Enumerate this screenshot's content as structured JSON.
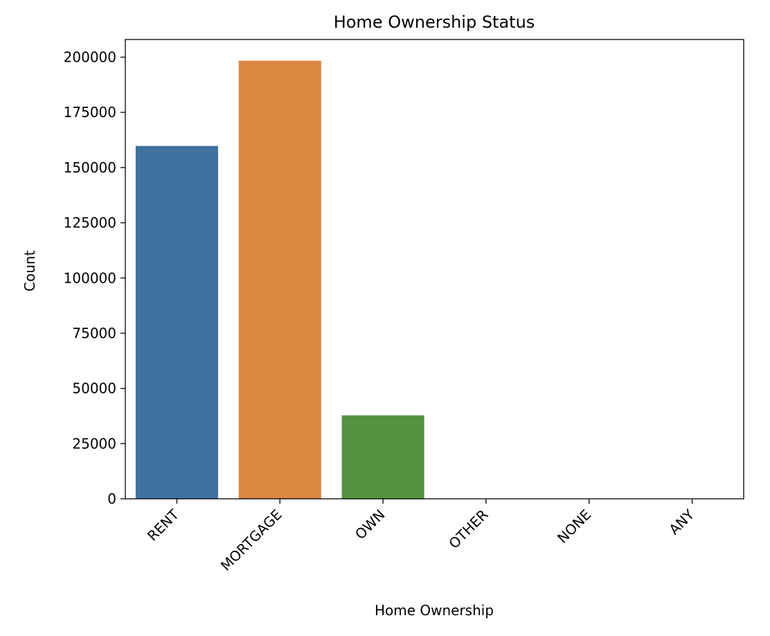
{
  "chart_data": {
    "type": "bar",
    "title": "Home Ownership Status",
    "xlabel": "Home Ownership",
    "ylabel": "Count",
    "categories": [
      "RENT",
      "MORTGAGE",
      "OWN",
      "OTHER",
      "NONE",
      "ANY"
    ],
    "values": [
      159800,
      198400,
      37800,
      100,
      30,
      3
    ],
    "colors": [
      "#3f72a0",
      "#d98741",
      "#55913f",
      "#c03d3e",
      "#8a6aaf",
      "#8c613c"
    ],
    "ylim": [
      0,
      208000
    ],
    "yticks": [
      0,
      25000,
      50000,
      75000,
      100000,
      125000,
      150000,
      175000,
      200000
    ],
    "ytick_labels": [
      "0",
      "25000",
      "50000",
      "75000",
      "100000",
      "125000",
      "150000",
      "175000",
      "200000"
    ],
    "grid": false,
    "legend": "none"
  }
}
